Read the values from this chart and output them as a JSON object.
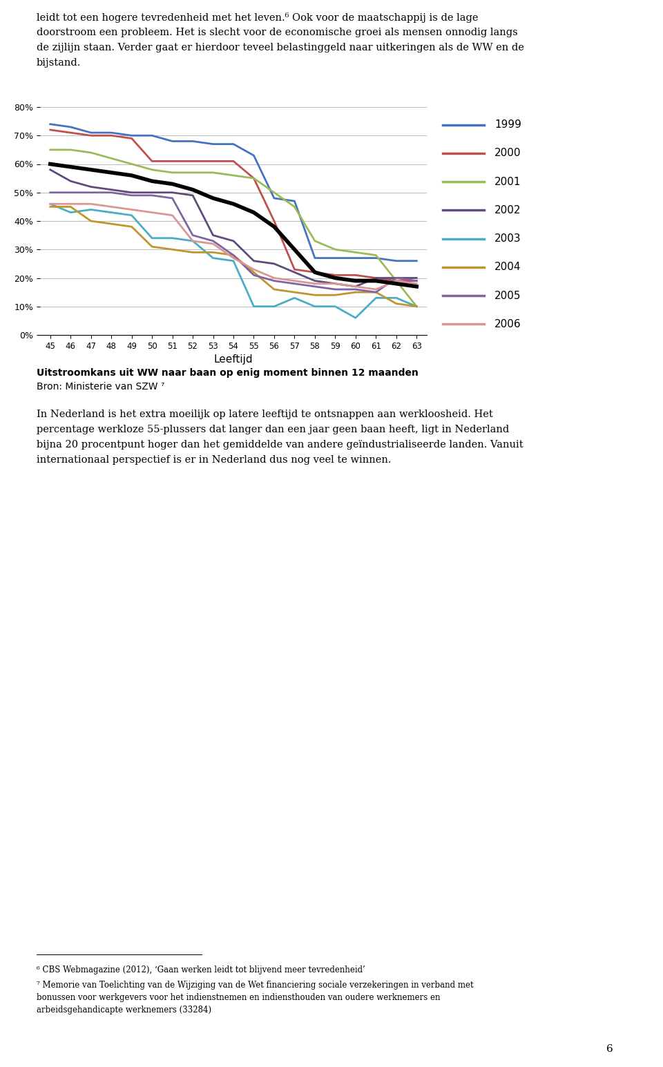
{
  "ages": [
    45,
    46,
    47,
    48,
    49,
    50,
    51,
    52,
    53,
    54,
    55,
    56,
    57,
    58,
    59,
    60,
    61,
    62,
    63
  ],
  "series": {
    "1999": [
      0.74,
      0.73,
      0.71,
      0.71,
      0.7,
      0.7,
      0.68,
      0.68,
      0.67,
      0.67,
      0.63,
      0.48,
      0.47,
      0.27,
      0.27,
      0.27,
      0.27,
      0.26,
      0.26
    ],
    "2000": [
      0.72,
      0.71,
      0.7,
      0.7,
      0.69,
      0.61,
      0.61,
      0.61,
      0.61,
      0.61,
      0.55,
      0.4,
      0.23,
      0.22,
      0.21,
      0.21,
      0.2,
      0.19,
      0.19
    ],
    "2001": [
      0.65,
      0.65,
      0.64,
      0.62,
      0.6,
      0.58,
      0.57,
      0.57,
      0.57,
      0.56,
      0.55,
      0.5,
      0.45,
      0.33,
      0.3,
      0.29,
      0.28,
      0.19,
      0.1
    ],
    "2002": [
      0.58,
      0.54,
      0.52,
      0.51,
      0.5,
      0.5,
      0.5,
      0.49,
      0.35,
      0.33,
      0.26,
      0.25,
      0.22,
      0.19,
      0.18,
      0.17,
      0.2,
      0.2,
      0.2
    ],
    "2003": [
      0.46,
      0.43,
      0.44,
      0.43,
      0.42,
      0.34,
      0.34,
      0.33,
      0.27,
      0.26,
      0.1,
      0.1,
      0.13,
      0.1,
      0.1,
      0.06,
      0.13,
      0.13,
      0.1
    ],
    "2004": [
      0.45,
      0.45,
      0.4,
      0.39,
      0.38,
      0.31,
      0.3,
      0.29,
      0.29,
      0.28,
      0.22,
      0.16,
      0.15,
      0.14,
      0.14,
      0.15,
      0.15,
      0.11,
      0.1
    ],
    "2005": [
      0.5,
      0.5,
      0.5,
      0.5,
      0.49,
      0.49,
      0.48,
      0.35,
      0.33,
      0.28,
      0.21,
      0.19,
      0.18,
      0.17,
      0.16,
      0.16,
      0.15,
      0.2,
      0.19
    ],
    "2006": [
      0.46,
      0.46,
      0.46,
      0.45,
      0.44,
      0.43,
      0.42,
      0.33,
      0.32,
      0.27,
      0.23,
      0.2,
      0.19,
      0.18,
      0.18,
      0.17,
      0.16,
      0.19,
      0.18
    ]
  },
  "average": [
    0.6,
    0.59,
    0.58,
    0.57,
    0.56,
    0.54,
    0.53,
    0.51,
    0.48,
    0.46,
    0.43,
    0.38,
    0.3,
    0.22,
    0.2,
    0.19,
    0.19,
    0.18,
    0.17
  ],
  "colors": {
    "1999": "#4472C4",
    "2000": "#C0504D",
    "2001": "#9BBB59",
    "2002": "#604A7B",
    "2003": "#4BACC6",
    "2004": "#C0962C",
    "2005": "#8064A2",
    "2006": "#D99694"
  },
  "xlabel": "Leeftijd",
  "legend_labels": [
    "1999",
    "2000",
    "2001",
    "2002",
    "2003",
    "2004",
    "2005",
    "2006"
  ],
  "caption_line1": "Uitstroomkans uit WW naar baan op enig moment binnen 12 maanden",
  "caption_line2": "Bron: Ministerie van SZW ⁷",
  "body_text_top_lines": [
    "leidt tot een hogere tevredenheid met het leven.⁶ Ook voor de maatschappij is de lage",
    "doorstroom een probleem. Het is slecht voor de economische groei als mensen onnodig langs",
    "de zijlijn staan. Verder gaat er hierdoor teveel belastinggeld naar uitkeringen als de WW en de",
    "bijstand."
  ],
  "body_text_bottom_lines": [
    "In Nederland is het extra moeilijk op latere leeftijd te ontsnappen aan werkloosheid. Het",
    "percentage werkloze 55-plussers dat langer dan een jaar geen baan heeft, ligt in Nederland",
    "bijna 20 procentpunt hoger dan het gemiddelde van andere geïndustrialiseerde landen. Vanuit",
    "internationaal perspectief is er in Nederland dus nog veel te winnen."
  ],
  "footnote1": "⁶ CBS Webmagazine (2012), ‘Gaan werken leidt tot blijvend meer tevredenheid’",
  "footnote2": "⁷ Memorie van Toelichting van de Wijziging van de Wet financiering sociale verzekeringen in verband met",
  "footnote3": "bonussen voor werkgevers voor het indienstnemen en indiensthouden van oudere werknemers en",
  "footnote4": "arbeidsgehandicapte werknemers (33284)",
  "page_number": "6",
  "fig_width": 9.6,
  "fig_height": 15.45,
  "dpi": 100
}
